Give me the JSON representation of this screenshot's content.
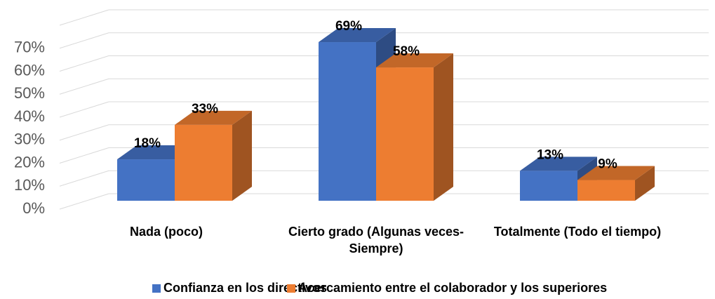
{
  "chart_data": {
    "type": "bar3d",
    "categories": [
      "Nada (poco)",
      "Cierto grado (Algunas veces-Siempre)",
      "Totalmente (Todo el tiempo)"
    ],
    "series": [
      {
        "name": "Confianza en los directivos",
        "color": "#4472c4",
        "values": [
          18,
          69,
          13
        ],
        "value_labels": [
          "18%",
          "69%",
          "13%"
        ]
      },
      {
        "name": "Acercamiento entre el colaborador y los superiores",
        "color": "#ed7d31",
        "values": [
          33,
          58,
          9
        ],
        "value_labels": [
          "33%",
          "58%",
          "9%"
        ]
      }
    ],
    "ylim": [
      0,
      80
    ],
    "yticks": [
      {
        "value": 0,
        "label": "0%"
      },
      {
        "value": 10,
        "label": "10%"
      },
      {
        "value": 20,
        "label": "20%"
      },
      {
        "value": 30,
        "label": "30%"
      },
      {
        "value": 40,
        "label": "40%"
      },
      {
        "value": 50,
        "label": "50%"
      },
      {
        "value": 60,
        "label": "60%"
      },
      {
        "value": 70,
        "label": "70%"
      }
    ],
    "grid": true,
    "legend": "bottom"
  }
}
